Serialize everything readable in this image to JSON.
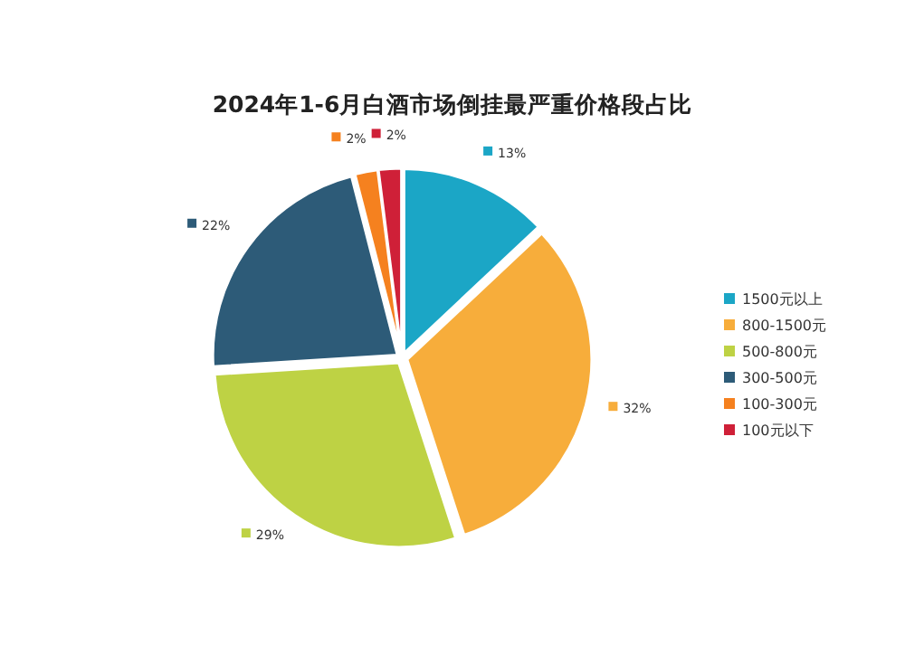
{
  "chart_data": {
    "type": "pie",
    "title": "2024年1-6月白酒市场倒挂最严重价格段占比",
    "categories": [
      "1500元以上",
      "800-1500元",
      "500-800元",
      "300-500元",
      "100-300元",
      "100元以下"
    ],
    "values": [
      13,
      32,
      29,
      22,
      2,
      2
    ],
    "colors": [
      "#1ba6c6",
      "#f7ad3b",
      "#bed244",
      "#2d5b78",
      "#f5811f",
      "#cf2038"
    ],
    "value_labels": [
      "13%",
      "32%",
      "29%",
      "22%",
      "2%",
      "2%"
    ],
    "legend": "right"
  }
}
